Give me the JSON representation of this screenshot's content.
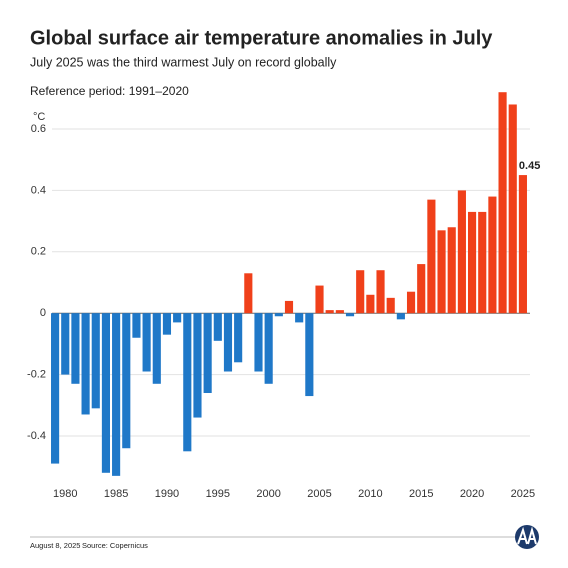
{
  "chart_data": {
    "type": "bar",
    "title": "Global surface air temperature anomalies in July",
    "subtitle": "July 2025 was the third warmest July on record globally",
    "note": "Reference period: 1991–2020",
    "y_label": "°C",
    "date": "August 8, 2025",
    "source": "Source: Copernicus",
    "x": [
      1979,
      1980,
      1981,
      1982,
      1983,
      1984,
      1985,
      1986,
      1987,
      1988,
      1989,
      1990,
      1991,
      1992,
      1993,
      1994,
      1995,
      1996,
      1997,
      1998,
      1999,
      2000,
      2001,
      2002,
      2003,
      2004,
      2005,
      2006,
      2007,
      2008,
      2009,
      2010,
      2011,
      2012,
      2013,
      2014,
      2015,
      2016,
      2017,
      2018,
      2019,
      2020,
      2021,
      2022,
      2023,
      2024,
      2025
    ],
    "values": [
      -0.49,
      -0.2,
      -0.23,
      -0.33,
      -0.31,
      -0.52,
      -0.53,
      -0.44,
      -0.08,
      -0.19,
      -0.23,
      -0.07,
      -0.03,
      -0.45,
      -0.34,
      -0.26,
      -0.09,
      -0.19,
      -0.16,
      0.13,
      -0.19,
      -0.23,
      -0.01,
      0.04,
      -0.03,
      -0.27,
      0.09,
      0.01,
      0.01,
      -0.01,
      0.14,
      0.06,
      0.14,
      0.05,
      -0.02,
      0.07,
      0.16,
      0.37,
      0.27,
      0.28,
      0.4,
      0.33,
      0.33,
      0.38,
      0.72,
      0.68,
      0.45
    ],
    "value_labels": [
      null,
      null,
      null,
      null,
      null,
      null,
      null,
      null,
      null,
      null,
      null,
      null,
      null,
      null,
      null,
      null,
      null,
      null,
      null,
      null,
      null,
      null,
      null,
      null,
      null,
      null,
      null,
      null,
      null,
      null,
      null,
      null,
      null,
      null,
      null,
      null,
      null,
      null,
      null,
      null,
      null,
      null,
      null,
      null,
      null,
      null,
      "0.45"
    ],
    "positive_color": "#f0401a",
    "negative_color": "#1f78c8",
    "xlim": [
      1978.5,
      2025.5
    ],
    "xticks": [
      1980,
      1985,
      1990,
      1995,
      2000,
      2005,
      2010,
      2015,
      2020,
      2025
    ],
    "ylim": [
      -0.55,
      0.75
    ],
    "yticks": [
      -0.4,
      -0.2,
      0,
      0.2,
      0.4,
      0.6
    ],
    "grid": true
  }
}
